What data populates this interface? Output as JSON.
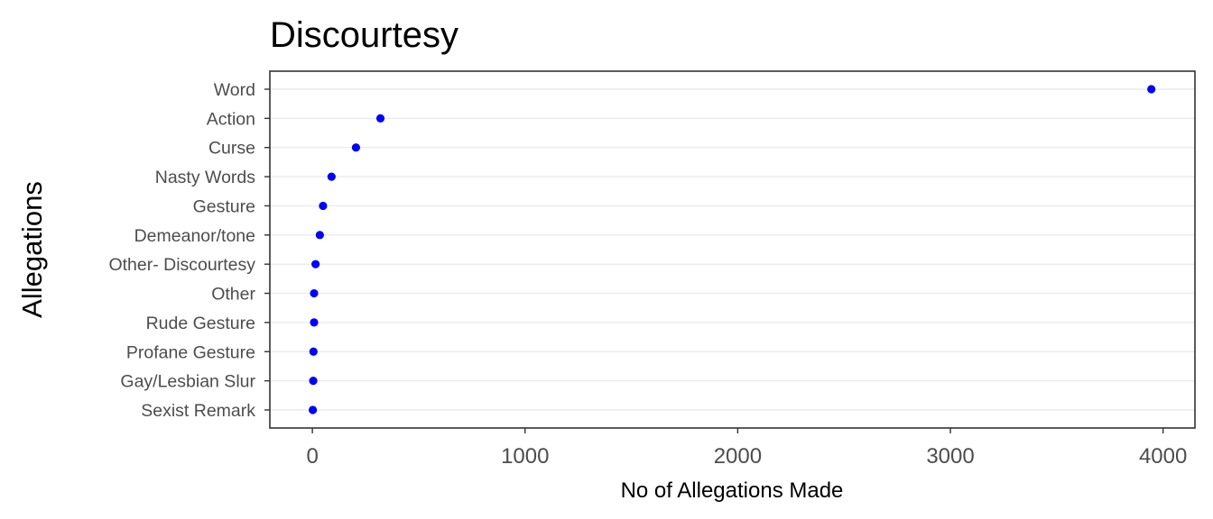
{
  "chart_data": {
    "type": "scatter",
    "title": "Discourtesy",
    "xlabel": "No of Allegations Made",
    "ylabel": "Allegations",
    "xlim": [
      -200,
      4150
    ],
    "x_ticks": [
      0,
      1000,
      2000,
      3000,
      4000
    ],
    "x_tick_labels": [
      "0",
      "1000",
      "2000",
      "3000",
      "4000"
    ],
    "grid": "horizontal-major",
    "point_color": "#0000ff",
    "categories": [
      "Word",
      "Action",
      "Curse",
      "Nasty Words",
      "Gesture",
      "Demeanor/tone",
      "Other- Discourtesy",
      "Other",
      "Rude Gesture",
      "Profane Gesture",
      "Gay/Lesbian Slur",
      "Sexist Remark"
    ],
    "values": [
      3945,
      320,
      205,
      90,
      50,
      35,
      15,
      8,
      8,
      5,
      4,
      2
    ]
  }
}
